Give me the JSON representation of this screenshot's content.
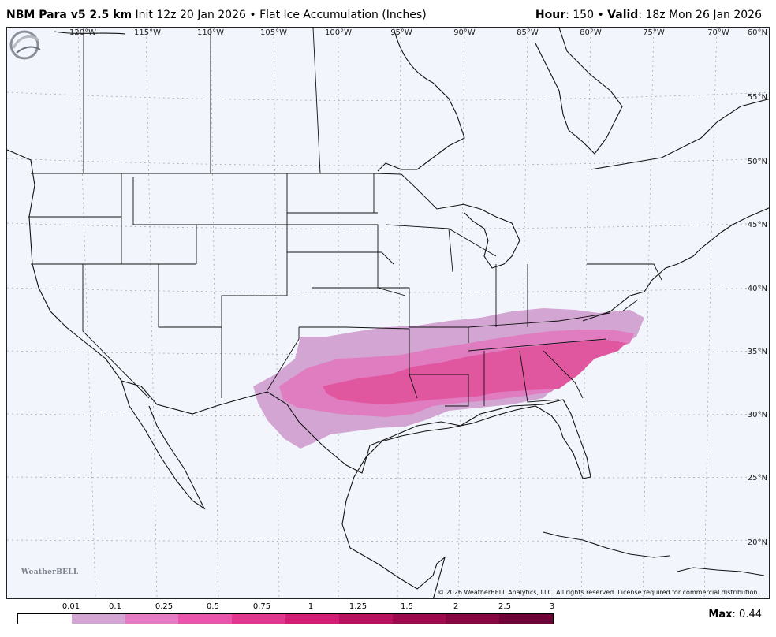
{
  "header": {
    "model": "NBM Para v5 2.5 km",
    "init": "Init 12z 20 Jan 2026",
    "separator": "•",
    "product": "Flat Ice Accumulation (Inches)",
    "hour_label": "Hour",
    "hour_value": ": 150",
    "valid_label": "Valid",
    "valid_value": ": 18z Mon 26 Jan 2026"
  },
  "map": {
    "longitude_labels": [
      "120°W",
      "115°W",
      "110°W",
      "105°W",
      "100°W",
      "95°W",
      "90°W",
      "85°W",
      "80°W",
      "75°W",
      "70°W",
      "60°N"
    ],
    "latitude_labels": [
      "55°N",
      "50°N",
      "45°N",
      "40°N",
      "35°N",
      "30°N",
      "25°N",
      "20°N"
    ],
    "copyright": "© 2026 WeatherBELL Analytics, LLC. All rights reserved. License required for commercial distribution.",
    "logo_text": "WeatherBELL",
    "colors": {
      "background": "#f3f5fc",
      "light": "#d3a5d3",
      "medium": "#e07dc0",
      "heavy": "#e0569f"
    }
  },
  "legend": {
    "ticks": [
      "0.01",
      "0.1",
      "0.25",
      "0.5",
      "0.75",
      "1",
      "1.25",
      "1.5",
      "2",
      "2.5",
      "3"
    ],
    "colors": [
      "#ffffff",
      "#d3a5d3",
      "#e47bc3",
      "#e856ab",
      "#e0388f",
      "#d21e74",
      "#b8125e",
      "#9c0b4e",
      "#850742",
      "#6d0437"
    ]
  },
  "max": {
    "label": "Max",
    "value": ": 0.44"
  }
}
